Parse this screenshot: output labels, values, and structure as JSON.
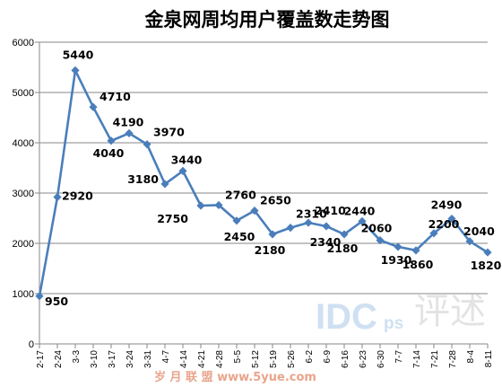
{
  "chart_data": {
    "type": "line",
    "title": "金泉网周均用户覆盖数走势图",
    "xlabel": "",
    "ylabel": "",
    "ylim": [
      0,
      6000
    ],
    "yticks": [
      0,
      1000,
      2000,
      3000,
      4000,
      5000,
      6000
    ],
    "grid": true,
    "legend": "none",
    "categories": [
      "2-17",
      "2-24",
      "3-3",
      "3-10",
      "3-17",
      "3-24",
      "3-31",
      "4-7",
      "4-14",
      "4-21",
      "4-28",
      "5-5",
      "5-12",
      "5-19",
      "5-26",
      "6-2",
      "6-9",
      "6-16",
      "6-23",
      "6-30",
      "7-7",
      "7-14",
      "7-21",
      "7-28",
      "8-4",
      "8-11"
    ],
    "series": [
      {
        "values": [
          950,
          2920,
          5440,
          4710,
          4040,
          4190,
          3970,
          3180,
          3440,
          2750,
          2760,
          2450,
          2650,
          2180,
          2310,
          2410,
          2340,
          2180,
          2440,
          2060,
          1930,
          1860,
          2200,
          2490,
          2040,
          1820
        ],
        "color": "#4a7ebb",
        "marker": "diamond",
        "labels": {
          "0": "950",
          "1": "2920",
          "2": "5440",
          "3": "4710",
          "4": "4040",
          "5": "4190",
          "6": "3970",
          "7": "3180",
          "8": "3440",
          "9": "2750",
          "10": "2760",
          "11": "2450",
          "12": "2650",
          "13": "2180",
          "14": "2310",
          "15": "2410",
          "16": "2340",
          "17": "2180",
          "18": "2440",
          "19": "2060",
          "20": "1930",
          "21": "1860",
          "22": "2200",
          "23": "2490",
          "24": "2040",
          "25": "1820"
        }
      }
    ]
  },
  "watermarks": {
    "brand": "IDC",
    "brand_suffix": "ps",
    "seal": "评述",
    "site": "岁 月 联 盟   www.5yue.com"
  }
}
